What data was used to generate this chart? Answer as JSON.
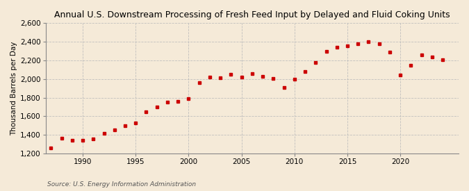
{
  "title": "Annual U.S. Downstream Processing of Fresh Feed Input by Delayed and Fluid Coking Units",
  "ylabel": "Thousand Barrels per Day",
  "source": "Source: U.S. Energy Information Administration",
  "background_color": "#f5ead8",
  "marker_color": "#cc0000",
  "grid_color": "#bbbbbb",
  "ylim": [
    1200,
    2600
  ],
  "yticks": [
    1200,
    1400,
    1600,
    1800,
    2000,
    2200,
    2400,
    2600
  ],
  "xlim": [
    1986.5,
    2025.5
  ],
  "xticks": [
    1990,
    1995,
    2000,
    2005,
    2010,
    2015,
    2020
  ],
  "years": [
    1987,
    1988,
    1989,
    1990,
    1991,
    1992,
    1993,
    1994,
    1995,
    1996,
    1997,
    1998,
    1999,
    2000,
    2001,
    2002,
    2003,
    2004,
    2005,
    2006,
    2007,
    2008,
    2009,
    2010,
    2011,
    2012,
    2013,
    2014,
    2015,
    2016,
    2017,
    2018,
    2019,
    2020,
    2021,
    2022,
    2023,
    2024
  ],
  "values": [
    1260,
    1365,
    1340,
    1340,
    1360,
    1415,
    1455,
    1500,
    1530,
    1645,
    1700,
    1750,
    1760,
    1790,
    1960,
    2020,
    2010,
    2050,
    2020,
    2060,
    2030,
    2005,
    1910,
    1995,
    2080,
    2180,
    2300,
    2340,
    2360,
    2380,
    2400,
    2380,
    2290,
    2040,
    2150,
    2260,
    2240,
    2210
  ],
  "title_fontsize": 9,
  "ylabel_fontsize": 7.5,
  "tick_fontsize": 7.5,
  "source_fontsize": 6.5
}
